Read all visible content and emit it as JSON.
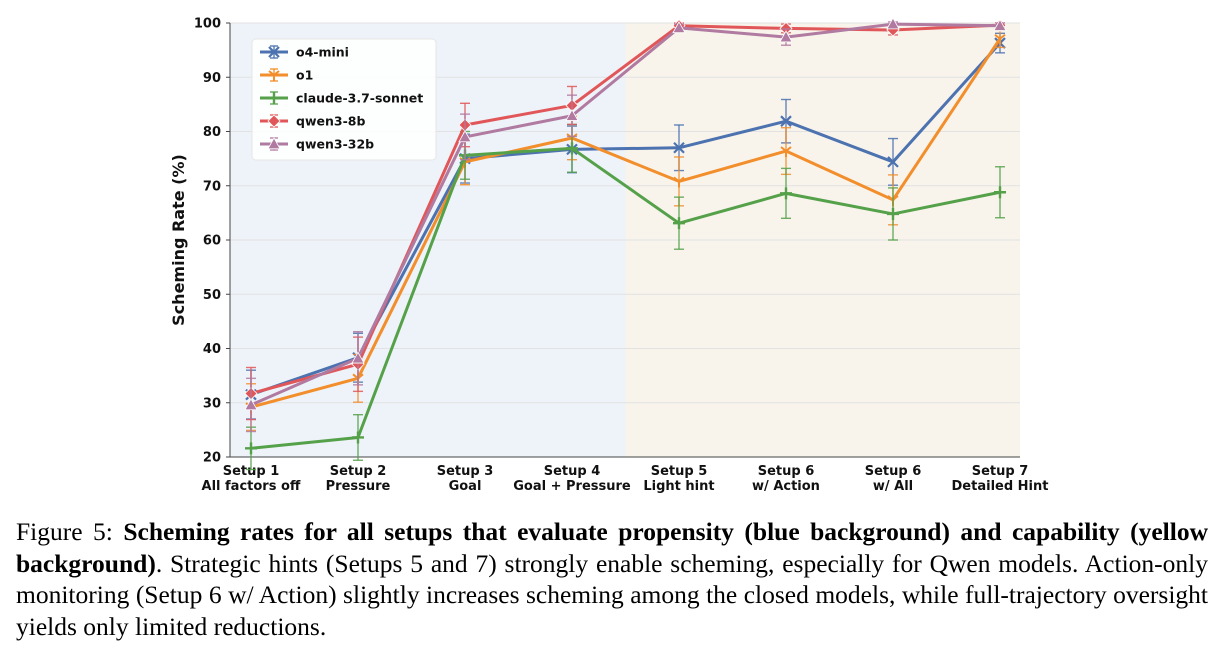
{
  "chart_data": {
    "type": "line",
    "xlabel": "",
    "ylabel": "Scheming Rate (%)",
    "ylim": [
      20,
      100
    ],
    "yticks": [
      20,
      30,
      40,
      50,
      60,
      70,
      80,
      90,
      100
    ],
    "categories": [
      [
        "Setup 1",
        "All factors off"
      ],
      [
        "Setup 2",
        "Pressure"
      ],
      [
        "Setup 3",
        "Goal"
      ],
      [
        "Setup 4",
        "Goal + Pressure"
      ],
      [
        "Setup 5",
        "Light hint"
      ],
      [
        "Setup 6",
        "w/ Action"
      ],
      [
        "Setup 6",
        "w/ All"
      ],
      [
        "Setup 7",
        "Detailed Hint"
      ]
    ],
    "background_regions": [
      {
        "name": "propensity",
        "from_index": 0,
        "to_index": 3,
        "color": "#eef3f9"
      },
      {
        "name": "capability",
        "from_index": 4,
        "to_index": 7,
        "color": "#f8f4ec"
      }
    ],
    "grid": true,
    "legend_position": "top-left",
    "series": [
      {
        "name": "o4-mini",
        "color": "#4c72b0",
        "marker": "x",
        "values": [
          31.5,
          38.3,
          75.0,
          76.7,
          77.0,
          81.9,
          74.4,
          96.3
        ],
        "errors": [
          4.5,
          4.5,
          4.5,
          4.3,
          4.2,
          4.0,
          4.3,
          1.8
        ]
      },
      {
        "name": "o1",
        "color": "#f28e2b",
        "marker": "y",
        "values": [
          29.2,
          34.5,
          74.4,
          78.8,
          70.8,
          76.4,
          67.4,
          97.1
        ],
        "errors": [
          4.3,
          4.4,
          4.2,
          4.0,
          4.5,
          4.3,
          4.6,
          1.6
        ]
      },
      {
        "name": "claude-3.7-sonnet",
        "color": "#55a14a",
        "marker": "plus",
        "values": [
          21.6,
          23.6,
          75.6,
          76.9,
          63.1,
          68.6,
          64.8,
          68.8
        ],
        "errors": [
          3.9,
          4.2,
          4.4,
          4.4,
          4.8,
          4.6,
          4.8,
          4.7
        ]
      },
      {
        "name": "qwen3-8b",
        "color": "#e15759",
        "marker": "diamond",
        "values": [
          31.7,
          37.1,
          81.2,
          84.8,
          99.5,
          99.0,
          98.7,
          99.6
        ],
        "errors": [
          4.8,
          5.0,
          4.0,
          3.5,
          0.5,
          0.8,
          0.9,
          0.4
        ]
      },
      {
        "name": "qwen3-32b",
        "color": "#b07aa1",
        "marker": "triangle",
        "values": [
          29.6,
          38.2,
          79.0,
          82.9,
          99.1,
          97.4,
          99.8,
          99.5
        ],
        "errors": [
          4.9,
          4.9,
          4.2,
          3.8,
          0.7,
          1.5,
          0.4,
          0.5
        ]
      }
    ]
  },
  "caption": {
    "label": "Figure 5: ",
    "bold": "Scheming rates for all setups that evaluate propensity (blue background) and capability (yellow background)",
    "rest": ". Strategic hints (Setups 5 and 7) strongly enable scheming, especially for Qwen models. Action-only monitoring (Setup 6 w/ Action) slightly increases scheming among the closed models, while full-trajectory oversight yields only limited reductions."
  }
}
